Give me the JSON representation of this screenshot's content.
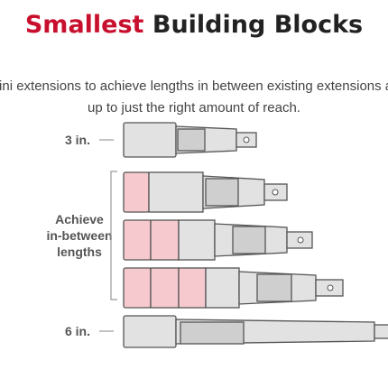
{
  "header": {
    "title_highlight": "Smallest",
    "title_rest": "Building Blocks",
    "subtitle_lines": [
      "mini extensions to achieve lengths in between existing extensions an",
      "up to just the right amount of reach."
    ]
  },
  "rows": {
    "short_label": "3 in.",
    "middle_label_lines": [
      "Achieve",
      "in-between",
      "lengths"
    ],
    "long_label": "6 in."
  }
}
